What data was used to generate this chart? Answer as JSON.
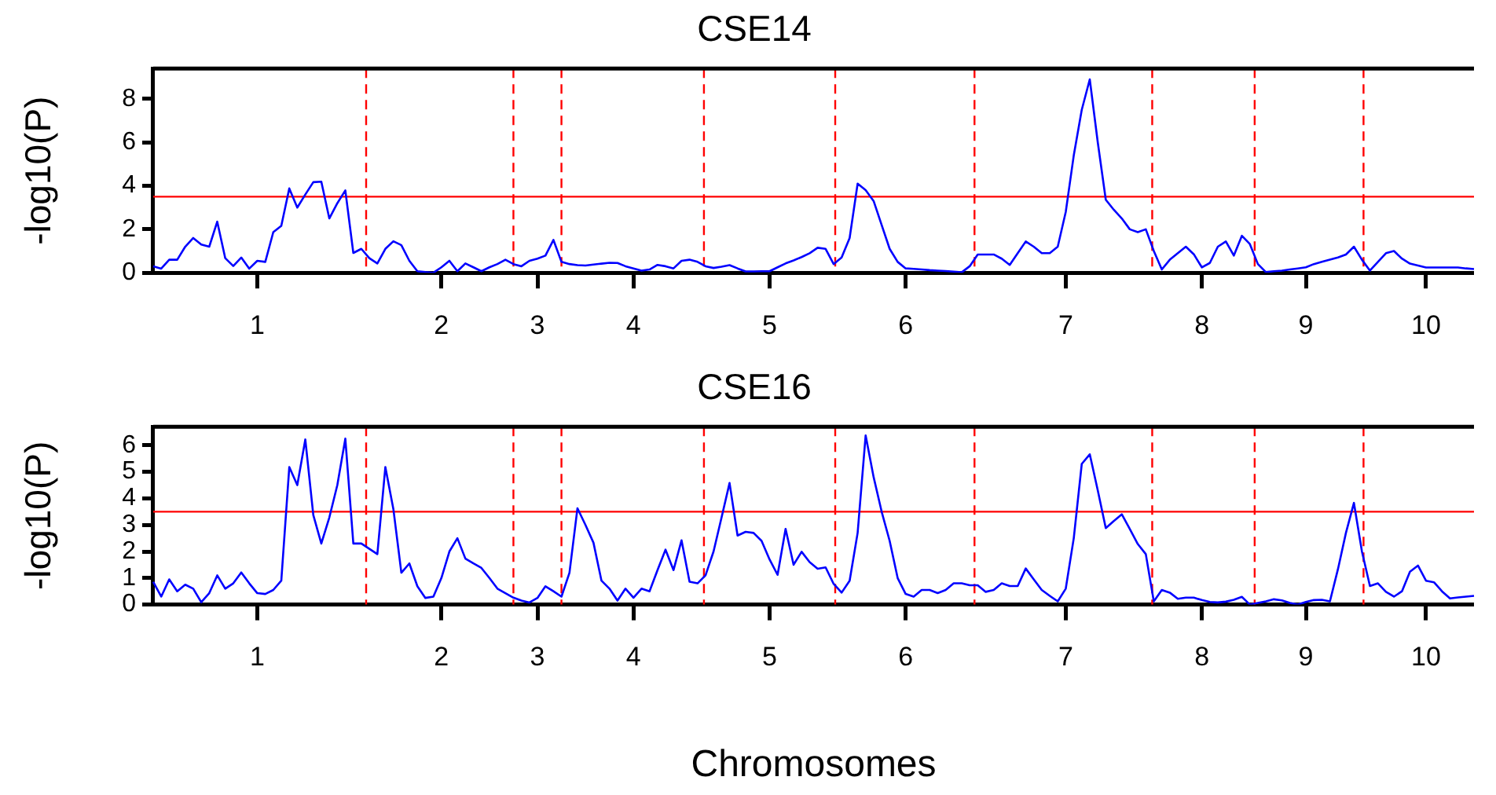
{
  "chart_data": [
    {
      "type": "line",
      "title": "CSE14",
      "ylabel": "-log10(P)",
      "ylim": [
        0,
        9.4
      ],
      "yticks": [
        0,
        2,
        4,
        6,
        8
      ],
      "marker": "none",
      "line_style": "solid",
      "categories": [
        null,
        null,
        null,
        null,
        null,
        null,
        null,
        null,
        null,
        null,
        null,
        null,
        null,
        "1",
        null,
        null,
        null,
        null,
        null,
        null,
        null,
        null,
        null,
        null,
        null,
        null,
        null,
        null,
        null,
        null,
        null,
        null,
        null,
        null,
        null,
        null,
        "2",
        null,
        null,
        null,
        null,
        null,
        null,
        null,
        null,
        null,
        null,
        null,
        "3",
        null,
        null,
        null,
        null,
        null,
        null,
        null,
        null,
        null,
        null,
        null,
        "4",
        null,
        null,
        null,
        null,
        null,
        null,
        null,
        null,
        null,
        null,
        null,
        null,
        null,
        null,
        null,
        null,
        "5",
        null,
        null,
        null,
        null,
        null,
        null,
        null,
        null,
        null,
        null,
        null,
        null,
        null,
        null,
        null,
        null,
        "6",
        null,
        null,
        null,
        null,
        null,
        null,
        null,
        null,
        null,
        null,
        null,
        null,
        null,
        null,
        null,
        null,
        null,
        null,
        null,
        "7",
        null,
        null,
        null,
        null,
        null,
        null,
        null,
        null,
        null,
        null,
        null,
        null,
        null,
        null,
        null,
        null,
        "8",
        null,
        null,
        null,
        null,
        null,
        null,
        null,
        null,
        null,
        null,
        null,
        null,
        "9",
        null,
        null,
        null,
        null,
        null,
        null,
        null,
        null,
        null,
        null,
        null,
        null,
        null,
        null,
        "10",
        null,
        null,
        null,
        null,
        null,
        null
      ],
      "series": [
        {
          "color": "#0000ff",
          "values": [
            0.3,
            0.19,
            0.6,
            0.6,
            1.2,
            1.6,
            1.3,
            1.2,
            2.35,
            0.67,
            0.31,
            0.7,
            0.19,
            0.55,
            0.5,
            1.87,
            2.16,
            3.88,
            3.0,
            3.6,
            4.17,
            4.19,
            2.5,
            3.2,
            3.79,
            0.91,
            1.1,
            0.67,
            0.43,
            1.1,
            1.45,
            1.27,
            0.55,
            0.07,
            0.03,
            0,
            0.25,
            0.55,
            0.07,
            0.43,
            0.25,
            0.07,
            0.25,
            0.4,
            0.6,
            0.4,
            0.3,
            0.55,
            0.65,
            0.79,
            1.51,
            0.5,
            0.4,
            0.35,
            0.33,
            0.38,
            0.42,
            0.46,
            0.45,
            0.3,
            0.2,
            0.1,
            0.15,
            0.36,
            0.3,
            0.2,
            0.55,
            0.6,
            0.5,
            0.3,
            0.22,
            0.28,
            0.35,
            0.2,
            0.06,
            0.06,
            0.07,
            0.07,
            0.25,
            0.43,
            0.57,
            0.72,
            0.9,
            1.15,
            1.1,
            0.4,
            0.7,
            1.6,
            4.1,
            3.8,
            3.3,
            2.2,
            1.1,
            0.5,
            0.2,
            0.18,
            0.15,
            0.12,
            0.1,
            0.08,
            0.05,
            0.02,
            0.3,
            0.84,
            0.84,
            0.84,
            0.65,
            0.36,
            0.9,
            1.44,
            1.2,
            0.9,
            0.9,
            1.2,
            2.8,
            5.4,
            7.5,
            8.9,
            6.0,
            3.36,
            2.9,
            2.5,
            2.0,
            1.87,
            2.0,
            1.0,
            0.15,
            0.6,
            0.9,
            1.2,
            0.85,
            0.25,
            0.45,
            1.2,
            1.44,
            0.79,
            1.7,
            1.32,
            0.4,
            0.03,
            0.07,
            0.1,
            0.15,
            0.2,
            0.25,
            0.4,
            0.5,
            0.6,
            0.7,
            0.84,
            1.2,
            0.6,
            0.1,
            0.5,
            0.9,
            1.0,
            0.65,
            0.42,
            0.33,
            0.24,
            0.24,
            0.24,
            0.24,
            0.24,
            0.2,
            0.17
          ]
        }
      ],
      "ref_lines": [
        {
          "axis": "y",
          "value": 3.5,
          "color": "#ff0000",
          "line_style": "solid"
        }
      ]
    },
    {
      "type": "line",
      "title": "CSE16",
      "ylabel": "-log10(P)",
      "xlabel": "Chromosomes",
      "ylim": [
        0,
        6.7
      ],
      "yticks": [
        0,
        1,
        2,
        3,
        4,
        5,
        6
      ],
      "marker": "none",
      "line_style": "solid",
      "categories": [
        null,
        null,
        null,
        null,
        null,
        null,
        null,
        null,
        null,
        null,
        null,
        null,
        null,
        "1",
        null,
        null,
        null,
        null,
        null,
        null,
        null,
        null,
        null,
        null,
        null,
        null,
        null,
        null,
        null,
        null,
        null,
        null,
        null,
        null,
        null,
        null,
        "2",
        null,
        null,
        null,
        null,
        null,
        null,
        null,
        null,
        null,
        null,
        null,
        "3",
        null,
        null,
        null,
        null,
        null,
        null,
        null,
        null,
        null,
        null,
        null,
        "4",
        null,
        null,
        null,
        null,
        null,
        null,
        null,
        null,
        null,
        null,
        null,
        null,
        null,
        null,
        null,
        null,
        "5",
        null,
        null,
        null,
        null,
        null,
        null,
        null,
        null,
        null,
        null,
        null,
        null,
        null,
        null,
        null,
        null,
        "6",
        null,
        null,
        null,
        null,
        null,
        null,
        null,
        null,
        null,
        null,
        null,
        null,
        null,
        null,
        null,
        null,
        null,
        null,
        null,
        "7",
        null,
        null,
        null,
        null,
        null,
        null,
        null,
        null,
        null,
        null,
        null,
        null,
        null,
        null,
        null,
        null,
        "8",
        null,
        null,
        null,
        null,
        null,
        null,
        null,
        null,
        null,
        null,
        null,
        null,
        "9",
        null,
        null,
        null,
        null,
        null,
        null,
        null,
        null,
        null,
        null,
        null,
        null,
        null,
        null,
        "10",
        null,
        null,
        null,
        null,
        null,
        null
      ],
      "series": [
        {
          "color": "#0000ff",
          "values": [
            0.86,
            0.3,
            0.95,
            0.5,
            0.75,
            0.6,
            0.09,
            0.43,
            1.1,
            0.6,
            0.8,
            1.21,
            0.8,
            0.43,
            0.4,
            0.55,
            0.9,
            5.18,
            4.5,
            6.22,
            3.37,
            2.3,
            3.28,
            4.5,
            6.25,
            2.3,
            2.3,
            2.1,
            1.9,
            5.18,
            3.6,
            1.2,
            1.55,
            0.69,
            0.25,
            0.3,
            1.0,
            2.0,
            2.5,
            1.73,
            1.55,
            1.38,
            1.0,
            0.6,
            0.43,
            0.26,
            0.15,
            0.08,
            0.25,
            0.69,
            0.5,
            0.3,
            1.2,
            3.63,
            3.0,
            2.33,
            0.9,
            0.6,
            0.15,
            0.6,
            0.26,
            0.6,
            0.5,
            1.3,
            2.07,
            1.3,
            2.42,
            0.86,
            0.8,
            1.1,
            2.0,
            3.28,
            4.58,
            2.6,
            2.74,
            2.7,
            2.4,
            1.7,
            1.12,
            2.85,
            1.5,
            1.99,
            1.6,
            1.35,
            1.4,
            0.78,
            0.45,
            0.9,
            2.7,
            6.37,
            4.8,
            3.5,
            2.4,
            1.0,
            0.4,
            0.3,
            0.55,
            0.55,
            0.43,
            0.55,
            0.8,
            0.8,
            0.73,
            0.73,
            0.48,
            0.55,
            0.8,
            0.7,
            0.7,
            1.36,
            0.95,
            0.55,
            0.33,
            0.12,
            0.6,
            2.5,
            5.3,
            5.66,
            4.3,
            2.88,
            3.15,
            3.4,
            2.85,
            2.28,
            1.9,
            0.12,
            0.55,
            0.45,
            0.22,
            0.26,
            0.26,
            0.17,
            0.1,
            0.08,
            0.11,
            0.18,
            0.29,
            0,
            0.06,
            0.12,
            0.2,
            0.16,
            0.06,
            0,
            0.1,
            0.17,
            0.18,
            0.12,
            1.33,
            2.7,
            3.83,
            2.0,
            0.7,
            0.8,
            0.48,
            0.3,
            0.5,
            1.24,
            1.47,
            0.9,
            0.84,
            0.5,
            0.23,
            0.27,
            0.3,
            0.33
          ]
        }
      ],
      "ref_lines": [
        {
          "axis": "y",
          "value": 3.5,
          "color": "#ff0000",
          "line_style": "solid"
        }
      ]
    }
  ]
}
